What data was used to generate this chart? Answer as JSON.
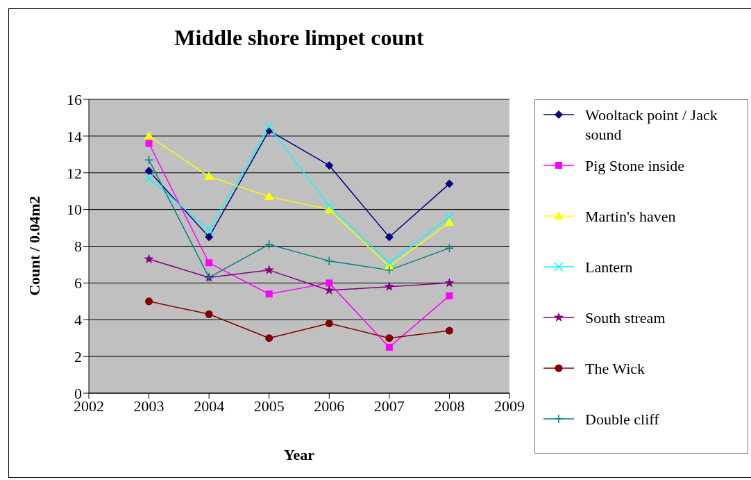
{
  "chart_data": {
    "type": "line",
    "title": "Middle shore limpet count",
    "xlabel": "Year",
    "ylabel": "Count / 0.04m2",
    "x": [
      2003,
      2004,
      2005,
      2006,
      2007,
      2008
    ],
    "xlim": [
      2002,
      2009
    ],
    "xticks": [
      2002,
      2003,
      2004,
      2005,
      2006,
      2007,
      2008,
      2009
    ],
    "ylim": [
      0,
      16
    ],
    "yticks": [
      0,
      2,
      4,
      6,
      8,
      10,
      12,
      14,
      16
    ],
    "grid": "y",
    "legend": "right",
    "series": [
      {
        "name": "Wooltack point / Jack sound",
        "color": "#000080",
        "marker": "diamond",
        "values": [
          12.1,
          8.5,
          14.3,
          12.4,
          8.5,
          11.4
        ]
      },
      {
        "name": "Pig Stone inside",
        "color": "#ff00ff",
        "marker": "square",
        "values": [
          13.6,
          7.1,
          5.4,
          6.0,
          2.5,
          5.3
        ]
      },
      {
        "name": "Martin's haven",
        "color": "#ffff00",
        "marker": "triangle",
        "values": [
          14.0,
          11.8,
          10.7,
          10.0,
          6.9,
          9.3
        ]
      },
      {
        "name": "Lantern",
        "color": "#00ffff",
        "marker": "cross",
        "values": [
          11.7,
          8.9,
          14.5,
          10.2,
          7.1,
          9.6
        ]
      },
      {
        "name": "South stream",
        "color": "#800080",
        "marker": "star",
        "values": [
          7.3,
          6.3,
          6.7,
          5.6,
          5.8,
          6.0
        ]
      },
      {
        "name": "The Wick",
        "color": "#800000",
        "marker": "circle",
        "values": [
          5.0,
          4.3,
          3.0,
          3.8,
          3.0,
          3.4
        ]
      },
      {
        "name": "Double cliff",
        "color": "#008080",
        "marker": "plus",
        "values": [
          12.7,
          6.3,
          8.1,
          7.2,
          6.7,
          7.9
        ]
      }
    ]
  }
}
